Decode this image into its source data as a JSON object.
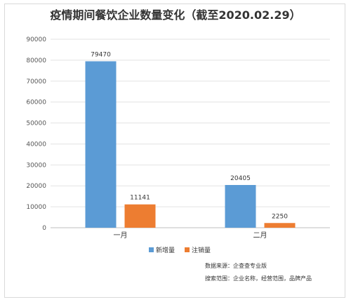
{
  "chart_data": {
    "type": "bar",
    "title": "疫情期间餐饮企业数量变化（截至2020.02.29）",
    "categories": [
      "一月",
      "二月"
    ],
    "series": [
      {
        "name": "新增量",
        "color": "#5b9bd5",
        "values": [
          79470,
          20405
        ]
      },
      {
        "name": "注销量",
        "color": "#ed7d31",
        "values": [
          11141,
          2250
        ]
      }
    ],
    "ylim": [
      0,
      90000
    ],
    "yticks": [
      0,
      10000,
      20000,
      30000,
      40000,
      50000,
      60000,
      70000,
      80000,
      90000
    ],
    "grid": true,
    "legend_position": "bottom",
    "xlabel": "",
    "ylabel": ""
  },
  "notes": {
    "source": "数据来源：企查查专业版",
    "scope": "搜索范围：企业名称，经营范围，品牌产品"
  }
}
